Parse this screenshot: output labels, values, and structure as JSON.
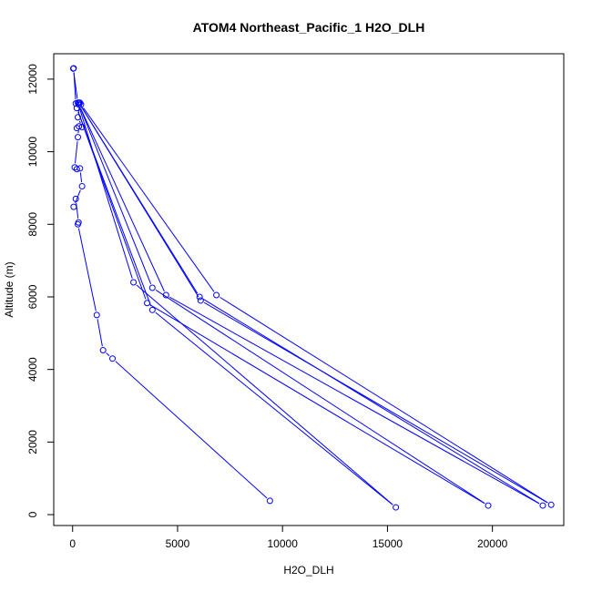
{
  "chart_data": {
    "type": "line",
    "title": "ATOM4 Northeast_Pacific_1 H2O_DLH",
    "xlabel": "H2O_DLH",
    "ylabel": "Altitude (m)",
    "xlim": [
      -900,
      23400
    ],
    "ylim": [
      -300,
      12700
    ],
    "x_ticks": [
      0,
      5000,
      10000,
      15000,
      20000
    ],
    "y_ticks": [
      0,
      2000,
      4000,
      6000,
      8000,
      10000,
      12000
    ],
    "grid": false,
    "legend": "none",
    "series_color": "#0000ff",
    "series": [
      {
        "values": [
          {
            "x": 9400,
            "y": 380
          },
          {
            "x": 1900,
            "y": 4300
          },
          {
            "x": 1450,
            "y": 4530
          },
          {
            "x": 1150,
            "y": 5500
          },
          {
            "x": 250,
            "y": 8000
          },
          {
            "x": 280,
            "y": 8050
          },
          {
            "x": 150,
            "y": 8700
          },
          {
            "x": 50,
            "y": 8480
          },
          {
            "x": 450,
            "y": 9050
          },
          {
            "x": 350,
            "y": 9540
          },
          {
            "x": 200,
            "y": 9520
          },
          {
            "x": 100,
            "y": 9570
          },
          {
            "x": 250,
            "y": 10400
          },
          {
            "x": 300,
            "y": 10700
          },
          {
            "x": 200,
            "y": 10650
          },
          {
            "x": 450,
            "y": 10680
          },
          {
            "x": 250,
            "y": 10950
          },
          {
            "x": 350,
            "y": 11350
          },
          {
            "x": 150,
            "y": 11330
          },
          {
            "x": 50,
            "y": 12300
          },
          {
            "x": 30,
            "y": 12290
          },
          {
            "x": 250,
            "y": 11350
          },
          {
            "x": 2900,
            "y": 6400
          },
          {
            "x": 15400,
            "y": 200
          },
          {
            "x": 3800,
            "y": 5640
          },
          {
            "x": 200,
            "y": 11200
          },
          {
            "x": 3550,
            "y": 5830
          },
          {
            "x": 19800,
            "y": 250
          },
          {
            "x": 3800,
            "y": 6250
          },
          {
            "x": 300,
            "y": 11300
          },
          {
            "x": 4450,
            "y": 6050
          },
          {
            "x": 22400,
            "y": 250
          },
          {
            "x": 6050,
            "y": 6000
          },
          {
            "x": 300,
            "y": 11350
          },
          {
            "x": 6100,
            "y": 5900
          },
          {
            "x": 22800,
            "y": 270
          },
          {
            "x": 6850,
            "y": 6050
          },
          {
            "x": 400,
            "y": 11300
          }
        ]
      }
    ]
  }
}
